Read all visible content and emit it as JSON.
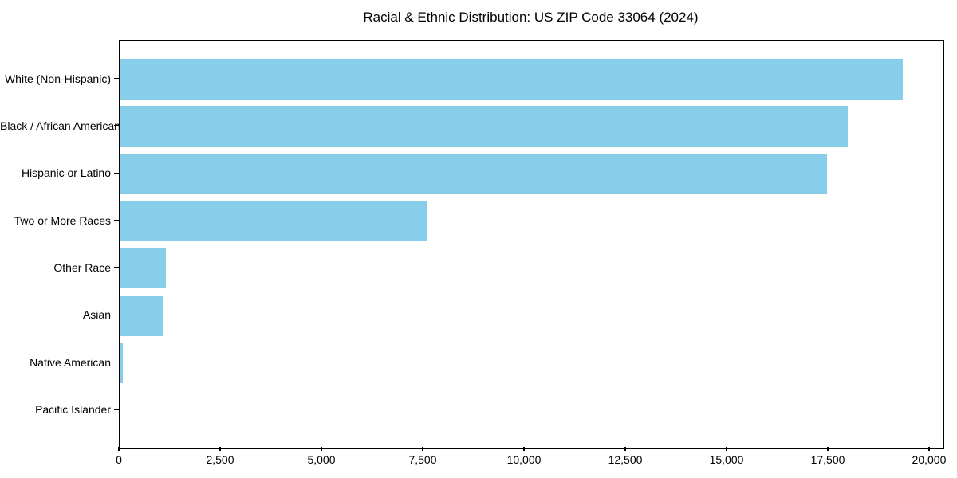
{
  "title": "Racial & Ethnic Distribution: US ZIP Code 33064 (2024)",
  "chart_data": {
    "type": "bar",
    "orientation": "horizontal",
    "title": "Racial & Ethnic Distribution: US ZIP Code 33064 (2024)",
    "categories": [
      "White (Non-Hispanic)",
      "Black / African American",
      "Hispanic or Latino",
      "Two or More Races",
      "Other Race",
      "Asian",
      "Native American",
      "Pacific Islander"
    ],
    "values": [
      19340,
      17980,
      17470,
      7580,
      1150,
      1060,
      85,
      0
    ],
    "xlabel": "",
    "ylabel": "",
    "xlim": [
      0,
      20335
    ],
    "xticks": [
      0,
      2500,
      5000,
      7500,
      10000,
      12500,
      15000,
      17500,
      20000
    ],
    "xtick_labels": [
      "0",
      "2,500",
      "5,000",
      "7,500",
      "10,000",
      "12,500",
      "15,000",
      "17,500",
      "20,000"
    ],
    "bar_color": "#87CEEB",
    "frame_color": "#000000",
    "grid": false,
    "legend": null
  }
}
